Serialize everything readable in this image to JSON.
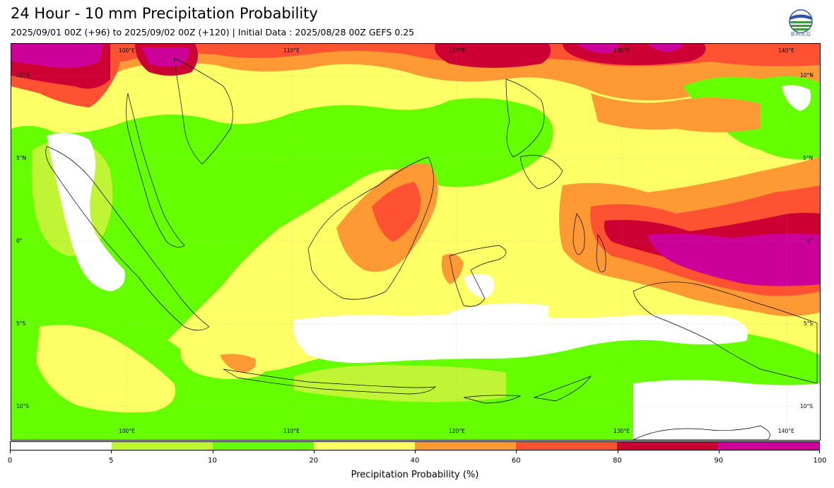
{
  "header": {
    "title": "24 Hour - 10 mm Precipitation Probability",
    "subtitle": "2025/09/01 00Z (+96) to 2025/09/02 00Z (+120) | Initial Data : 2025/08/28 00Z GEFS 0.25",
    "logo_text": "BMKG",
    "logo_icon": "bmkg-logo-icon"
  },
  "map": {
    "longitude_labels": [
      "100°E",
      "110°E",
      "120°E",
      "130°E",
      "140°E"
    ],
    "latitude_labels": [
      "10°N",
      "5°N",
      "0°",
      "5°S",
      "10°S"
    ],
    "colors": {
      "0-5": "#ffffff",
      "5-10": "#c0f536",
      "10-20": "#66ff00",
      "20-40": "#ffff66",
      "40-60": "#ff9933",
      "60-80": "#ff5233",
      "80-90": "#cc0033",
      "90-100": "#cc0099"
    }
  },
  "colorbar": {
    "ticks": [
      "0",
      "5",
      "10",
      "20",
      "40",
      "60",
      "80",
      "90",
      "100"
    ],
    "colors": [
      "#ffffff",
      "#c0f536",
      "#66ff00",
      "#ffff66",
      "#ff9933",
      "#ff5233",
      "#cc0033",
      "#cc0099"
    ],
    "label": "Precipitation Probability (%)"
  }
}
